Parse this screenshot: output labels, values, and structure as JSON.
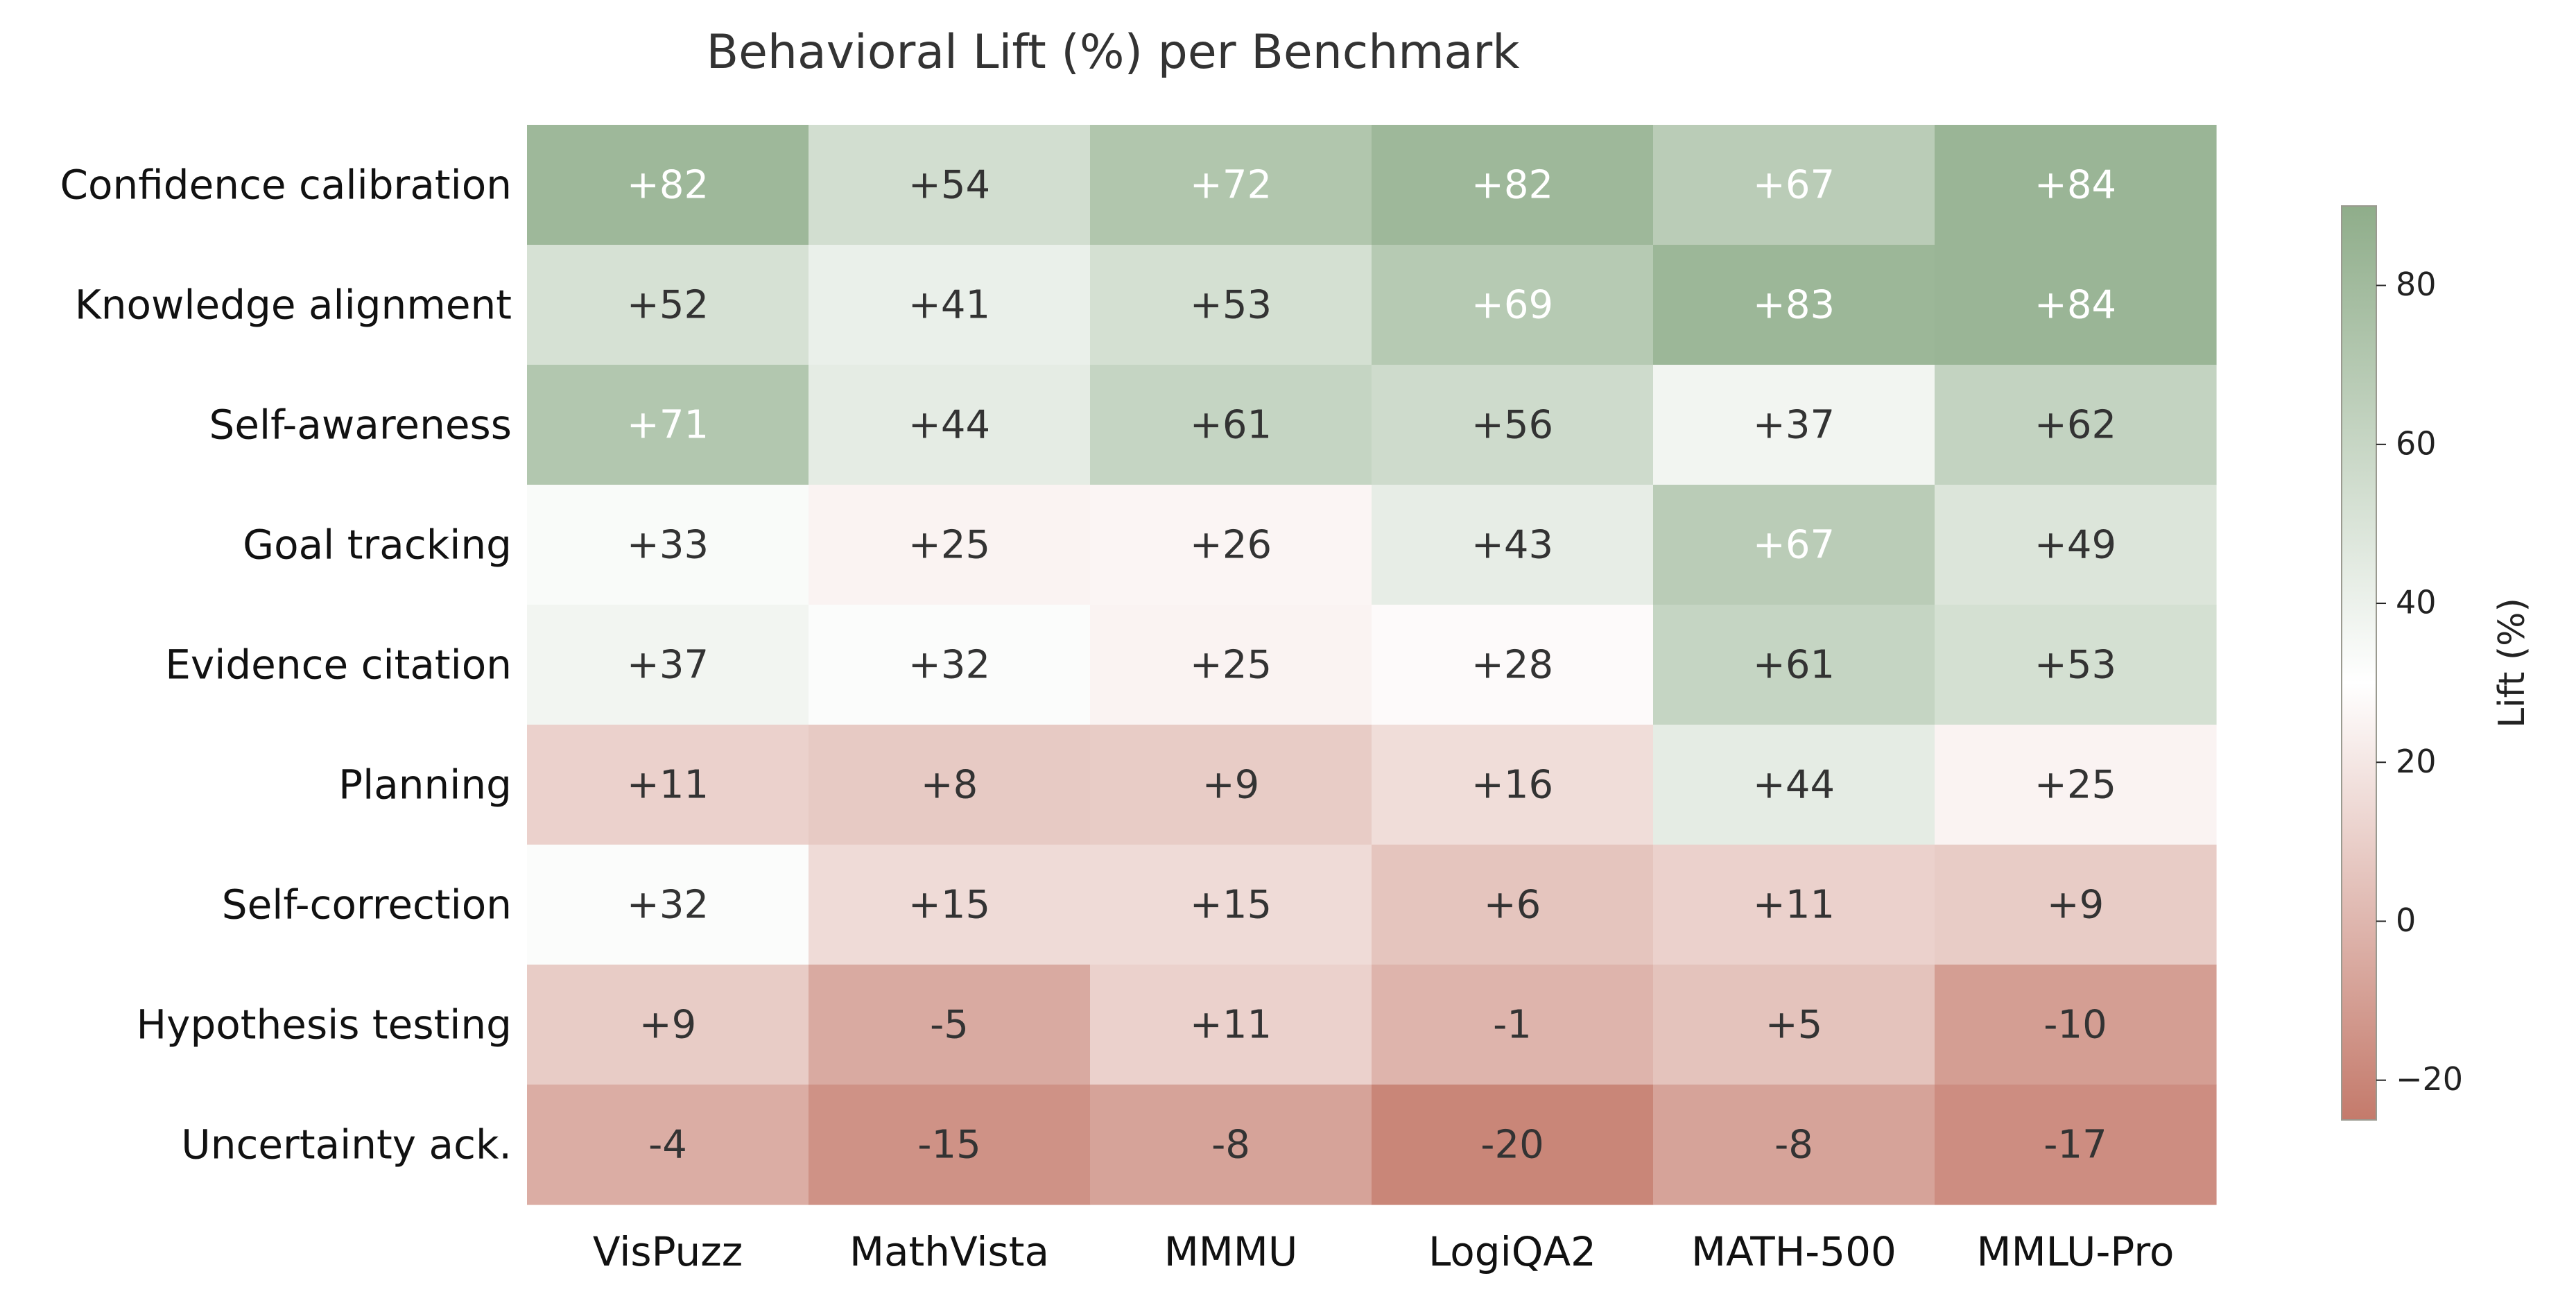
{
  "chart_data": {
    "type": "heatmap",
    "title": "Behavioral Lift (%) per Benchmark",
    "rows": [
      "Confidence calibration",
      "Knowledge alignment",
      "Self-awareness",
      "Goal tracking",
      "Evidence citation",
      "Planning",
      "Self-correction",
      "Hypothesis testing",
      "Uncertainty ack."
    ],
    "columns": [
      "VisPuzz",
      "MathVista",
      "MMMU",
      "LogiQA2",
      "MATH-500",
      "MMLU-Pro"
    ],
    "values": [
      [
        82,
        54,
        72,
        82,
        67,
        84
      ],
      [
        52,
        41,
        53,
        69,
        83,
        84
      ],
      [
        71,
        44,
        61,
        56,
        37,
        62
      ],
      [
        33,
        25,
        26,
        43,
        67,
        49
      ],
      [
        37,
        32,
        25,
        28,
        61,
        53
      ],
      [
        11,
        8,
        9,
        16,
        44,
        25
      ],
      [
        32,
        15,
        15,
        6,
        11,
        9
      ],
      [
        9,
        -5,
        11,
        -1,
        5,
        -10
      ],
      [
        -4,
        -15,
        -8,
        -20,
        -8,
        -17
      ]
    ],
    "cell_labels": [
      [
        "+82",
        "+54",
        "+72",
        "+82",
        "+67",
        "+84"
      ],
      [
        "+52",
        "+41",
        "+53",
        "+69",
        "+83",
        "+84"
      ],
      [
        "+71",
        "+44",
        "+61",
        "+56",
        "+37",
        "+62"
      ],
      [
        "+33",
        "+25",
        "+26",
        "+43",
        "+67",
        "+49"
      ],
      [
        "+37",
        "+32",
        "+25",
        "+28",
        "+61",
        "+53"
      ],
      [
        "+11",
        "+8",
        "+9",
        "+16",
        "+44",
        "+25"
      ],
      [
        "+32",
        "+15",
        "+15",
        "+6",
        "+11",
        "+9"
      ],
      [
        "+9",
        "-5",
        "+11",
        "-1",
        "+5",
        "-10"
      ],
      [
        "-4",
        "-15",
        "-8",
        "-20",
        "-8",
        "-17"
      ]
    ],
    "colorbar": {
      "label": "Lift (%)",
      "range": [
        -25,
        90
      ],
      "center": 30,
      "ticks": [
        80,
        60,
        40,
        20,
        0,
        -20
      ],
      "tick_labels": [
        "80",
        "60",
        "40",
        "20",
        "0",
        "−20"
      ],
      "colors": {
        "low": "#c47a6b",
        "mid": "#ffffff",
        "high": "#8fad8a"
      }
    },
    "text_colors": {
      "dark": "#333333",
      "light": "#ffffff",
      "light_threshold": 66
    },
    "grid": false,
    "legend": "colorbar-right"
  }
}
